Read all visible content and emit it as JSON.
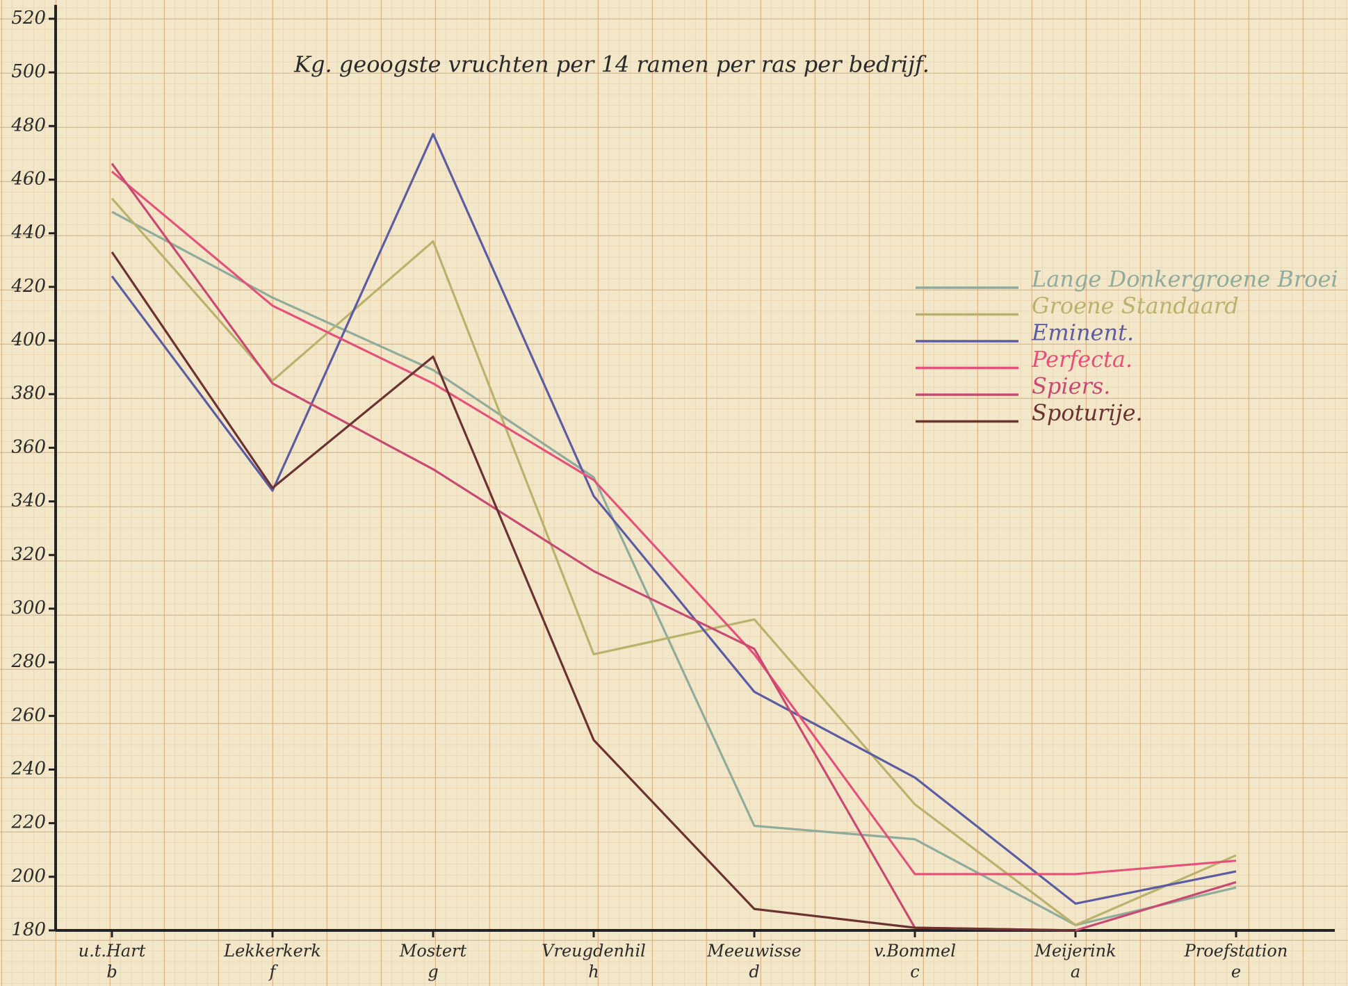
{
  "chart_data": {
    "type": "line",
    "title": "Kg. geoogste vruchten per 14 ramen per ras per bedrijf.",
    "categories": [
      "u.t.Hart",
      "Lekkerkerk",
      "Mostert",
      "Vreugdenhil",
      "Meeuwisse",
      "v.Bommel",
      "Meijerink",
      "Proefstation"
    ],
    "category_codes": [
      "b",
      "f",
      "g",
      "h",
      "d",
      "c",
      "a",
      "e"
    ],
    "ylim": [
      180,
      520
    ],
    "yticks": [
      180,
      200,
      220,
      240,
      260,
      280,
      300,
      320,
      340,
      360,
      380,
      400,
      420,
      440,
      460,
      480,
      500,
      520
    ],
    "series": [
      {
        "name": "Lange Donkergroene Broei",
        "color": "#8fab9c",
        "values": [
          448,
          416,
          389,
          349,
          219,
          214,
          182,
          196
        ]
      },
      {
        "name": "Groene Standaard",
        "color": "#b9b26c",
        "values": [
          453,
          385,
          437,
          283,
          296,
          227,
          182,
          208
        ]
      },
      {
        "name": "Eminent.",
        "color": "#5c5ca2",
        "values": [
          424,
          344,
          477,
          342,
          269,
          237,
          190,
          202
        ]
      },
      {
        "name": "Perfecta.",
        "color": "#e4527c",
        "values": [
          463,
          413,
          384,
          348,
          283,
          201,
          201,
          206
        ]
      },
      {
        "name": "Spiers.",
        "color": "#c84a72",
        "values": [
          466,
          384,
          352,
          314,
          285,
          181,
          180,
          198
        ]
      },
      {
        "name": "Spoturije.",
        "color": "#6b3232",
        "values": [
          433,
          345,
          394,
          251,
          188,
          181,
          180,
          null
        ]
      }
    ]
  }
}
